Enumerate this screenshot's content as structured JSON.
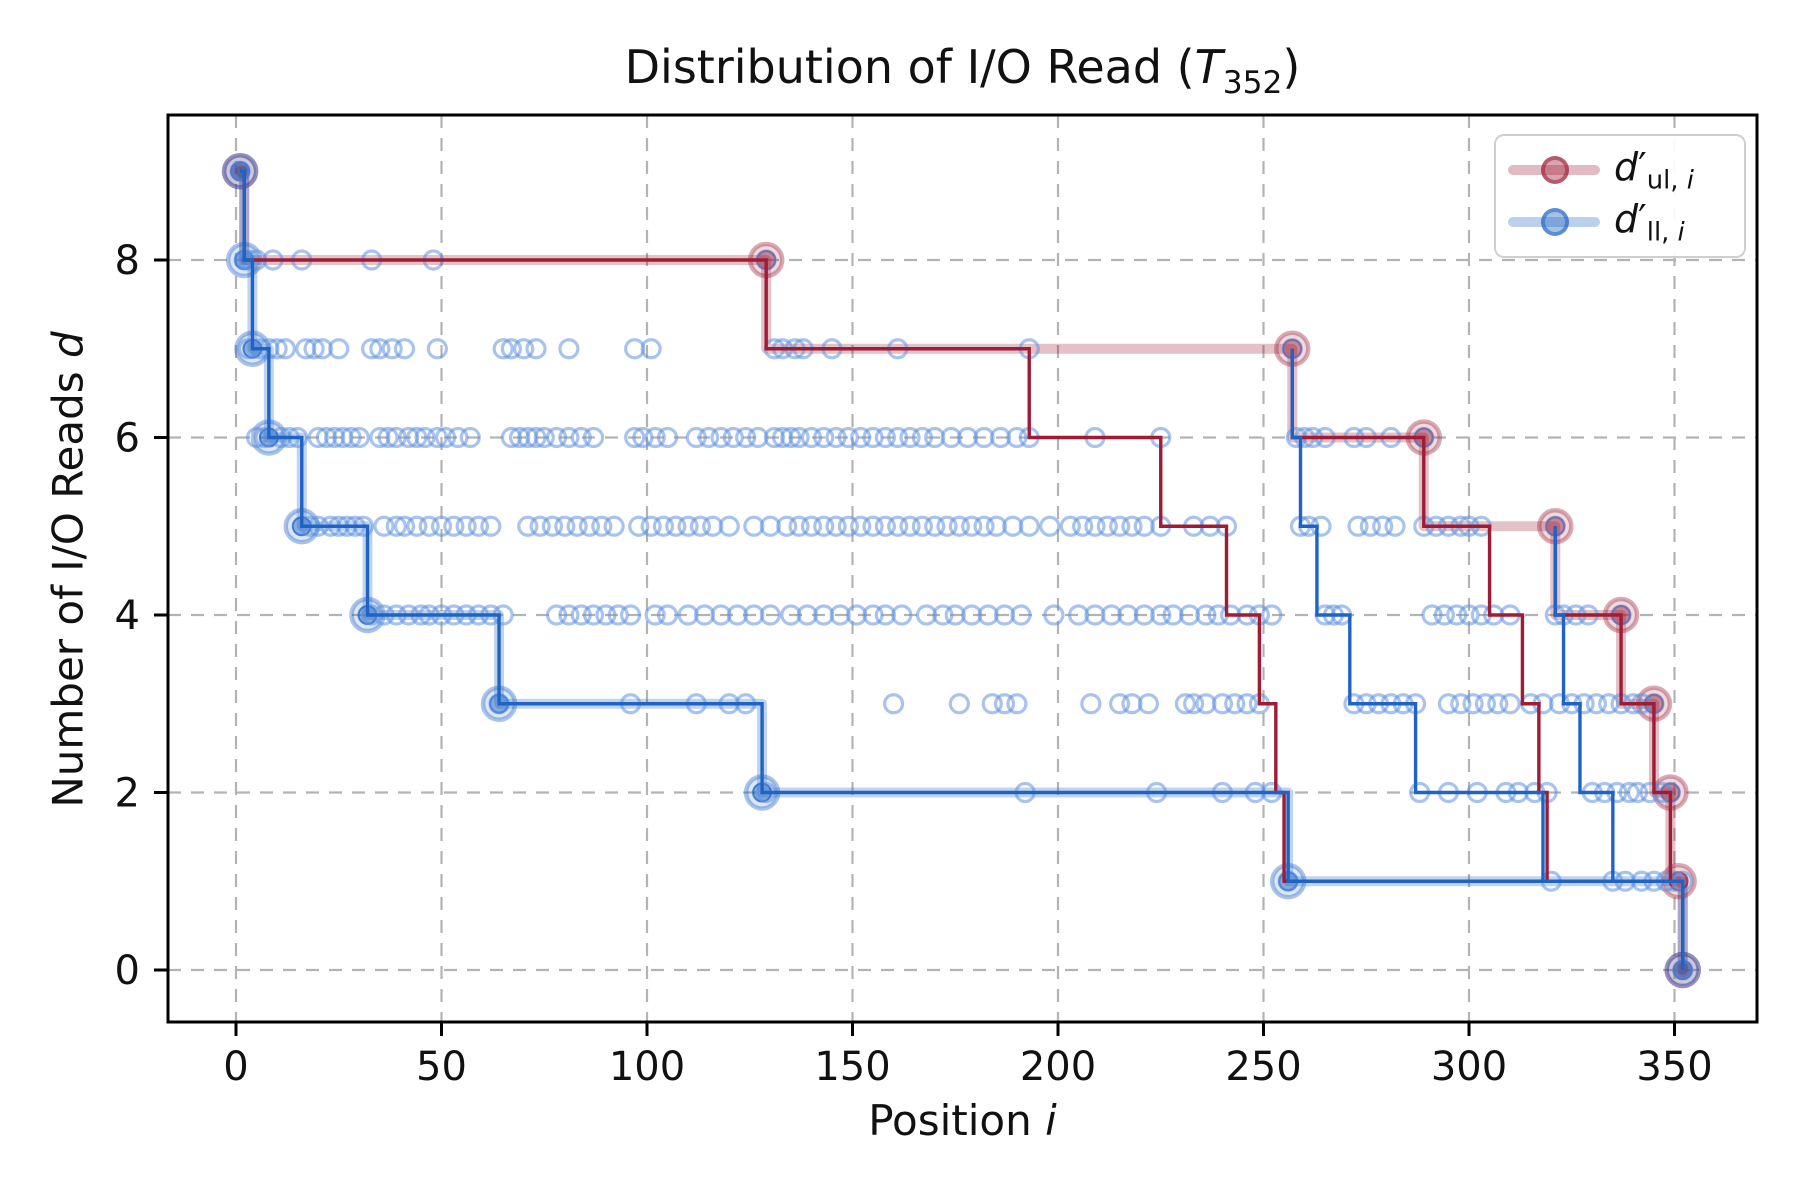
{
  "title": {
    "text": "Distribution of I/O Read (T352)",
    "html": "Distribution of I/O Read (<i>T</i><sub>352</sub>)"
  },
  "axes": {
    "x": {
      "label_text": "Position i",
      "label_html": "Position <i>i</i>",
      "ticks": [
        0,
        50,
        100,
        150,
        200,
        250,
        300,
        350
      ]
    },
    "y": {
      "label_text": "Number of I/O Reads d",
      "label_html": "Number of I/O Reads <i>d</i>",
      "ticks": [
        0,
        2,
        4,
        6,
        8
      ]
    }
  },
  "legend": {
    "items": [
      {
        "id": "upper",
        "label_text": "d'ul, i",
        "label_html": "<i>d</i>&#8242;<sub>ul, <i>i</i></sub>",
        "color": "#9e1c36"
      },
      {
        "id": "lower",
        "label_text": "d'll, i",
        "label_html": "<i>d</i>&#8242;<sub>ll, <i>i</i></sub>",
        "color": "#1f63c4"
      }
    ]
  },
  "colors": {
    "upper_red": "#9e1c36",
    "lower_blue": "#1f63c4",
    "scatter_blue": "#5e92e0",
    "grid": "#b3b3b3",
    "spine": "#000000"
  },
  "chart_data": {
    "type": "line",
    "title": "Distribution of I/O Read (T_352)",
    "xlabel": "Position i",
    "ylabel": "Number of I/O Reads d",
    "xlim": [
      -16.5,
      370
    ],
    "ylim": [
      -0.58,
      9.63
    ],
    "xticks": [
      0,
      50,
      100,
      150,
      200,
      250,
      300,
      350
    ],
    "yticks": [
      0,
      2,
      4,
      6,
      8
    ],
    "grid": true,
    "legend_position": "upper right",
    "series": [
      {
        "name": "d'_ul,i upper envelope (thick translucent, markers)",
        "color": "#9e1c36",
        "style": "band",
        "points": [
          [
            1,
            9
          ],
          [
            2,
            9
          ],
          [
            2,
            8
          ],
          [
            129,
            8
          ],
          [
            129,
            7
          ],
          [
            257,
            7
          ],
          [
            257,
            6
          ],
          [
            289,
            6
          ],
          [
            289,
            5
          ],
          [
            321,
            5
          ],
          [
            321,
            4
          ],
          [
            337,
            4
          ],
          [
            337,
            3
          ],
          [
            345,
            3
          ],
          [
            345,
            2
          ],
          [
            349,
            2
          ],
          [
            349,
            1
          ],
          [
            352,
            1
          ],
          [
            352,
            0
          ]
        ],
        "markers": [
          [
            1,
            9
          ],
          [
            129,
            8
          ],
          [
            257,
            7
          ],
          [
            289,
            6
          ],
          [
            321,
            5
          ],
          [
            337,
            4
          ],
          [
            345,
            3
          ],
          [
            349,
            2
          ],
          [
            351,
            1
          ],
          [
            352,
            0
          ]
        ]
      },
      {
        "name": "d'_ll,i lower envelope (thick translucent, markers)",
        "color": "#1f63c4",
        "style": "band",
        "points": [
          [
            1,
            9
          ],
          [
            2,
            9
          ],
          [
            2,
            8
          ],
          [
            4,
            8
          ],
          [
            4,
            7
          ],
          [
            8,
            7
          ],
          [
            8,
            6
          ],
          [
            16,
            6
          ],
          [
            16,
            5
          ],
          [
            32,
            5
          ],
          [
            32,
            4
          ],
          [
            64,
            4
          ],
          [
            64,
            3
          ],
          [
            128,
            3
          ],
          [
            128,
            2
          ],
          [
            256,
            2
          ],
          [
            256,
            1
          ],
          [
            352,
            1
          ],
          [
            352,
            0
          ]
        ],
        "markers": [
          [
            1,
            9
          ],
          [
            2,
            8
          ],
          [
            4,
            7
          ],
          [
            8,
            6
          ],
          [
            16,
            5
          ],
          [
            32,
            4
          ],
          [
            64,
            3
          ],
          [
            128,
            2
          ],
          [
            256,
            1
          ],
          [
            352,
            0
          ]
        ]
      },
      {
        "name": "upper thin staircase run [1,256]",
        "color": "#9e1c36",
        "style": "thin",
        "points": [
          [
            1,
            9
          ],
          [
            2,
            9
          ],
          [
            2,
            8
          ],
          [
            129,
            8
          ],
          [
            129,
            7
          ],
          [
            193,
            7
          ],
          [
            193,
            6
          ],
          [
            225,
            6
          ],
          [
            225,
            5
          ],
          [
            241,
            5
          ],
          [
            241,
            4
          ],
          [
            249,
            4
          ],
          [
            249,
            3
          ],
          [
            253,
            3
          ],
          [
            253,
            2
          ],
          [
            255,
            2
          ],
          [
            255,
            1
          ],
          [
            256,
            1
          ]
        ]
      },
      {
        "name": "upper thin staircase run [257,320]",
        "color": "#9e1c36",
        "style": "thin",
        "points": [
          [
            257,
            7
          ],
          [
            257,
            6
          ],
          [
            289,
            6
          ],
          [
            289,
            5
          ],
          [
            305,
            5
          ],
          [
            305,
            4
          ],
          [
            313,
            4
          ],
          [
            313,
            3
          ],
          [
            317,
            3
          ],
          [
            317,
            2
          ],
          [
            319,
            2
          ],
          [
            319,
            1
          ],
          [
            320,
            1
          ]
        ]
      },
      {
        "name": "upper thin staircase run [321,352]",
        "color": "#9e1c36",
        "style": "thin",
        "points": [
          [
            321,
            5
          ],
          [
            321,
            4
          ],
          [
            337,
            4
          ],
          [
            337,
            3
          ],
          [
            345,
            3
          ],
          [
            345,
            2
          ],
          [
            349,
            2
          ],
          [
            349,
            1
          ],
          [
            352,
            1
          ],
          [
            352,
            0
          ]
        ]
      },
      {
        "name": "lower thin staircase run [1,256]",
        "color": "#1f63c4",
        "style": "thin",
        "points": [
          [
            1,
            9
          ],
          [
            2,
            9
          ],
          [
            2,
            8
          ],
          [
            4,
            8
          ],
          [
            4,
            7
          ],
          [
            8,
            7
          ],
          [
            8,
            6
          ],
          [
            16,
            6
          ],
          [
            16,
            5
          ],
          [
            32,
            5
          ],
          [
            32,
            4
          ],
          [
            64,
            4
          ],
          [
            64,
            3
          ],
          [
            128,
            3
          ],
          [
            128,
            2
          ],
          [
            256,
            2
          ],
          [
            256,
            1
          ],
          [
            352,
            1
          ],
          [
            352,
            0
          ]
        ]
      },
      {
        "name": "lower thin staircase run [257,320]",
        "color": "#1f63c4",
        "style": "thin",
        "points": [
          [
            257,
            7
          ],
          [
            257,
            6
          ],
          [
            259,
            6
          ],
          [
            259,
            5
          ],
          [
            263,
            5
          ],
          [
            263,
            4
          ],
          [
            271,
            4
          ],
          [
            271,
            3
          ],
          [
            287,
            3
          ],
          [
            287,
            2
          ],
          [
            318,
            2
          ],
          [
            318,
            1
          ],
          [
            320,
            1
          ]
        ]
      },
      {
        "name": "lower thin staircase run [321,352]",
        "color": "#1f63c4",
        "style": "thin",
        "points": [
          [
            321,
            5
          ],
          [
            321,
            4
          ],
          [
            323,
            4
          ],
          [
            323,
            3
          ],
          [
            327,
            3
          ],
          [
            327,
            2
          ],
          [
            335,
            2
          ],
          [
            335,
            1
          ],
          [
            352,
            1
          ],
          [
            352,
            0
          ]
        ]
      }
    ],
    "scatter": {
      "name": "per-position I/O read counts",
      "color": "#5e92e0",
      "rows": {
        "9": [
          1
        ],
        "8": [
          2,
          3,
          5,
          9,
          16,
          33,
          48,
          129
        ],
        "7": [
          3,
          6,
          8,
          10,
          12,
          17,
          19,
          21,
          25,
          33,
          35,
          38,
          41,
          49,
          65,
          67,
          70,
          73,
          81,
          97,
          101,
          131,
          133,
          136,
          138,
          145,
          161,
          193,
          257
        ],
        "6": [
          5,
          7,
          11,
          13,
          15,
          20,
          22,
          24,
          26,
          28,
          30,
          35,
          37,
          39,
          42,
          44,
          46,
          49,
          51,
          54,
          57,
          67,
          69,
          71,
          73,
          75,
          78,
          81,
          84,
          87,
          97,
          99,
          102,
          105,
          112,
          115,
          118,
          121,
          124,
          127,
          131,
          133,
          135,
          137,
          140,
          143,
          146,
          149,
          152,
          155,
          158,
          161,
          164,
          167,
          170,
          174,
          178,
          182,
          186,
          190,
          193,
          209,
          225,
          258,
          260,
          262,
          265,
          272,
          275,
          281,
          289
        ],
        "5": [
          18,
          20,
          23,
          25,
          27,
          29,
          31,
          36,
          39,
          41,
          44,
          47,
          50,
          53,
          56,
          59,
          62,
          71,
          74,
          77,
          80,
          83,
          86,
          89,
          92,
          98,
          101,
          104,
          107,
          110,
          113,
          116,
          120,
          126,
          130,
          134,
          137,
          140,
          143,
          146,
          149,
          152,
          155,
          158,
          161,
          164,
          167,
          170,
          173,
          176,
          179,
          182,
          185,
          189,
          193,
          198,
          203,
          206,
          209,
          212,
          215,
          218,
          221,
          225,
          233,
          237,
          241,
          259,
          261,
          264,
          273,
          276,
          279,
          282,
          289,
          292,
          295,
          298,
          300,
          303,
          321
        ],
        "4": [
          33,
          36,
          39,
          42,
          45,
          47,
          50,
          53,
          56,
          59,
          62,
          65,
          78,
          81,
          84,
          87,
          90,
          93,
          96,
          102,
          105,
          110,
          114,
          118,
          122,
          126,
          130,
          135,
          139,
          143,
          147,
          151,
          155,
          158,
          162,
          168,
          172,
          175,
          179,
          183,
          187,
          191,
          199,
          205,
          209,
          213,
          217,
          221,
          225,
          228,
          232,
          236,
          239,
          242,
          246,
          249,
          252,
          265,
          267,
          269,
          291,
          294,
          297,
          300,
          303,
          306,
          310,
          321,
          323,
          326,
          329,
          337
        ],
        "3": [
          64,
          96,
          112,
          120,
          124,
          160,
          176,
          184,
          187,
          190,
          208,
          215,
          218,
          222,
          231,
          233,
          236,
          240,
          243,
          246,
          249,
          272,
          275,
          278,
          281,
          284,
          287,
          295,
          298,
          301,
          304,
          307,
          310,
          315,
          318,
          322,
          325,
          328,
          331,
          334,
          337,
          340,
          342,
          345
        ],
        "2": [
          129,
          192,
          224,
          240,
          248,
          252,
          288,
          295,
          302,
          309,
          312,
          316,
          319,
          330,
          333,
          336,
          339,
          341,
          344,
          347,
          349
        ],
        "1": [
          256,
          320,
          335,
          338,
          342,
          345,
          348,
          350,
          352
        ],
        "0": [
          352
        ]
      }
    }
  }
}
